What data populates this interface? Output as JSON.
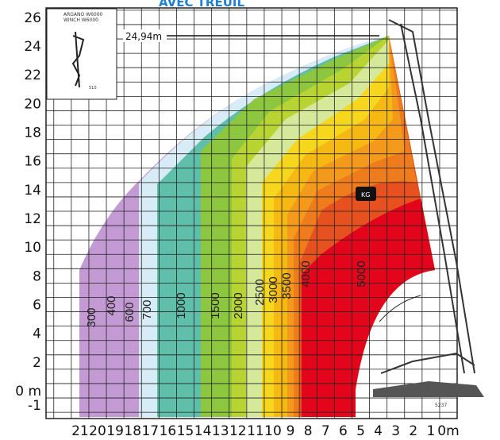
{
  "header": {
    "title": "AVEC TREUIL"
  },
  "inset": {
    "lines": [
      "ARGANO W6000",
      "WINCH W6000"
    ],
    "dimension": "510"
  },
  "max_height_label": "24,94m",
  "y_axis": {
    "labels": [
      "26",
      "24",
      "22",
      "20",
      "18",
      "16",
      "14",
      "12",
      "10",
      "8",
      "6",
      "4",
      "2",
      "0 m",
      "-1"
    ]
  },
  "x_axis": {
    "labels": [
      "21",
      "20",
      "19",
      "18",
      "17",
      "16",
      "15",
      "14",
      "13",
      "12",
      "11",
      "10",
      "9",
      "8",
      "7",
      "6",
      "5",
      "4",
      "3",
      "2",
      "1",
      "0m"
    ]
  },
  "load_labels": [
    "300",
    "400",
    "600",
    "700",
    "1000",
    "1500",
    "2000",
    "2500",
    "3000",
    "3500",
    "4000",
    "5000"
  ],
  "weight_icon": "KG",
  "base_dimension": "5237"
}
